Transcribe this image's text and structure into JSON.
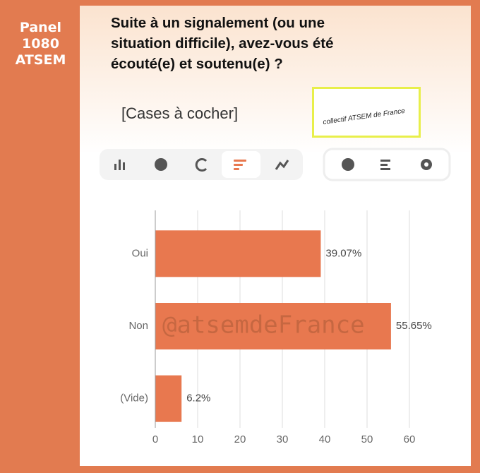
{
  "panel": [
    "Panel",
    "1080",
    "ATSEM"
  ],
  "title": "Suite à un signalement (ou une situation difficile), avez-vous été écouté(e) et soutenu(e) ?",
  "subtitle": "[Cases à cocher]",
  "logo_text": "collectif ATSEM de France",
  "watermark": "@atsemdeFrance",
  "chart_data": {
    "type": "bar",
    "orientation": "horizontal",
    "categories": [
      "Oui",
      "Non",
      "(Vide)"
    ],
    "values": [
      39.07,
      55.65,
      6.2
    ],
    "value_labels": [
      "39.07%",
      "55.65%",
      "6.2%"
    ],
    "color": "#e8784f",
    "xlim": [
      0,
      60
    ],
    "xticks": [
      0,
      10,
      20,
      30,
      40,
      50,
      60
    ],
    "grid": true
  }
}
